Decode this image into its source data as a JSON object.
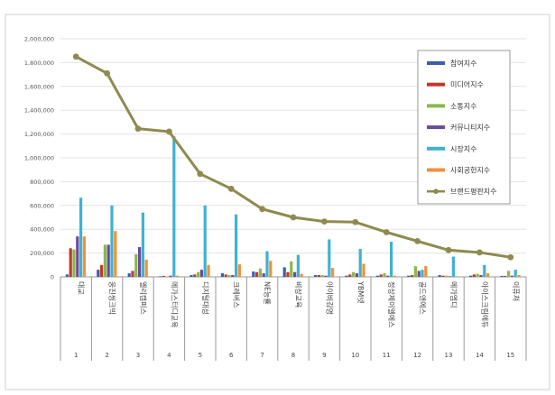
{
  "chart_data": {
    "type": "bar",
    "title": "",
    "xlabel": "",
    "ylabel": "",
    "ylim": [
      0,
      2000000
    ],
    "yticks": [
      0,
      200000,
      400000,
      600000,
      800000,
      1000000,
      1200000,
      1400000,
      1600000,
      1800000,
      2000000
    ],
    "ytick_labels": [
      "0",
      "200,000",
      "400,000",
      "600,000",
      "800,000",
      "1,000,000",
      "1,200,000",
      "1,400,000",
      "1,600,000",
      "1,800,000",
      "2,000,000"
    ],
    "grid": true,
    "legend_position": "top-right",
    "categories": [
      "대교",
      "웅진씽크빅",
      "엘리캠퍼스",
      "메가스터디교육",
      "디지털대성",
      "크레버스",
      "NE능률",
      "비상교육",
      "아이비김영",
      "YBM넷",
      "정상제이엘에스",
      "골드앤에스",
      "메가엠디",
      "아이스크림에듀",
      "이퓨쳐"
    ],
    "ranks": [
      "1",
      "2",
      "3",
      "4",
      "5",
      "6",
      "7",
      "8",
      "9",
      "10",
      "11",
      "12",
      "13",
      "14",
      "15"
    ],
    "series": [
      {
        "name": "참여지수",
        "color": "#3b5ea8",
        "values": [
          20000,
          60000,
          30000,
          5000,
          15000,
          30000,
          45000,
          80000,
          15000,
          10000,
          10000,
          10000,
          15000,
          10000,
          8000
        ]
      },
      {
        "name": "미디어지수",
        "color": "#c0392b",
        "values": [
          240000,
          100000,
          50000,
          8000,
          20000,
          20000,
          40000,
          40000,
          15000,
          20000,
          20000,
          15000,
          10000,
          20000,
          8000
        ]
      },
      {
        "name": "소통지수",
        "color": "#8ab84a",
        "values": [
          230000,
          270000,
          190000,
          3000,
          40000,
          15000,
          70000,
          130000,
          15000,
          40000,
          30000,
          90000,
          10000,
          25000,
          50000
        ]
      },
      {
        "name": "커뮤니티지수",
        "color": "#6a4a9c",
        "values": [
          340000,
          270000,
          250000,
          10000,
          60000,
          15000,
          30000,
          40000,
          10000,
          30000,
          10000,
          50000,
          5000,
          15000,
          10000
        ]
      },
      {
        "name": "시장지수",
        "color": "#3fb2d0",
        "values": [
          665000,
          600000,
          540000,
          1180000,
          600000,
          525000,
          215000,
          185000,
          315000,
          235000,
          295000,
          60000,
          170000,
          100000,
          60000
        ]
      },
      {
        "name": "사회공헌지수",
        "color": "#f0913a",
        "values": [
          340000,
          385000,
          145000,
          10000,
          100000,
          105000,
          135000,
          25000,
          75000,
          110000,
          10000,
          90000,
          5000,
          30000,
          15000
        ]
      }
    ],
    "line_series": {
      "name": "브랜드평판지수",
      "color": "#8f8a4e",
      "values": [
        1850000,
        1710000,
        1245000,
        1220000,
        865000,
        740000,
        570000,
        500000,
        465000,
        460000,
        375000,
        300000,
        225000,
        205000,
        165000
      ]
    }
  }
}
